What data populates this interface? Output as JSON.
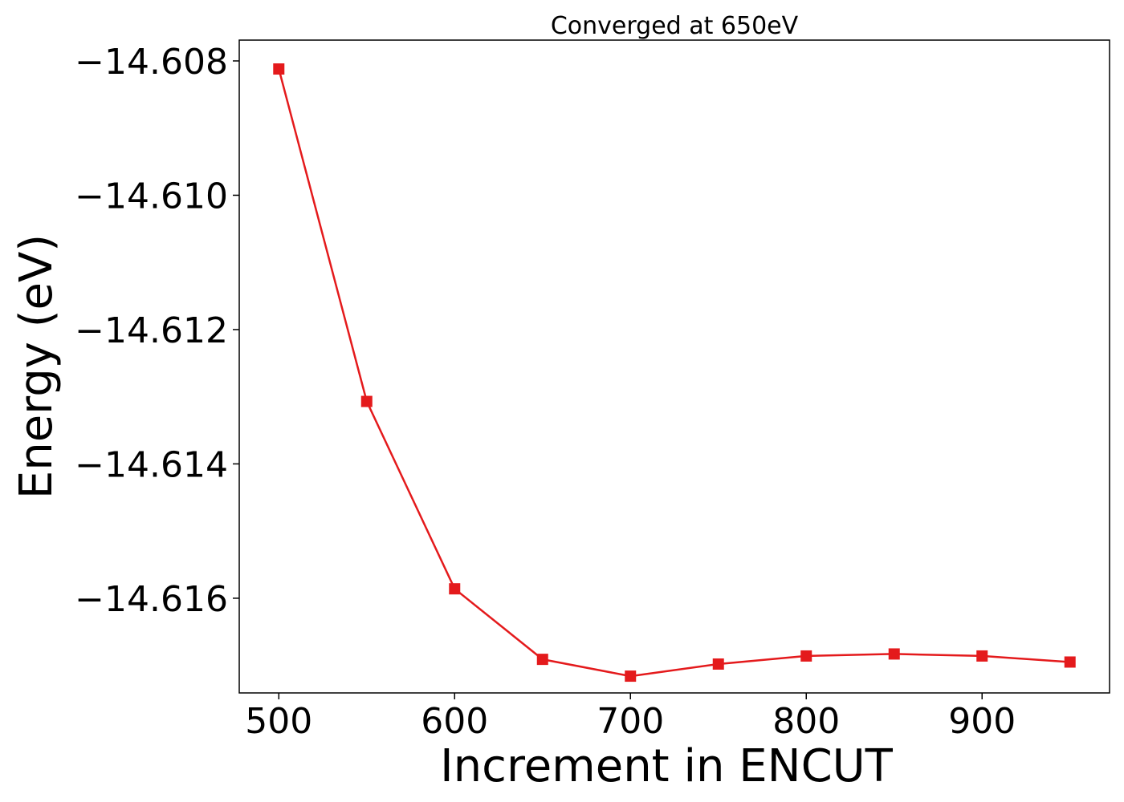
{
  "chart_data": {
    "type": "line",
    "title": "Converged at 650eV",
    "xlabel": "Increment in ENCUT",
    "ylabel": "Energy (eV)",
    "x": [
      500,
      550,
      600,
      650,
      700,
      750,
      800,
      850,
      900,
      950
    ],
    "series": [
      {
        "values": [
          -14.60812,
          -14.61307,
          -14.61586,
          -14.61691,
          -14.61716,
          -14.61698,
          -14.61686,
          -14.61683,
          -14.61686,
          -14.61695
        ],
        "color": "#e41a1c",
        "marker": "square"
      }
    ],
    "xlim": [
      477.5,
      972.5
    ],
    "ylim": [
      -14.61741,
      -14.60769
    ],
    "xticks": [
      500,
      600,
      700,
      800,
      900
    ],
    "xtick_labels": [
      "500",
      "600",
      "700",
      "800",
      "900"
    ],
    "yticks": [
      -14.608,
      -14.61,
      -14.612,
      -14.614,
      -14.616
    ],
    "ytick_labels": [
      "−14.608",
      "−14.610",
      "−14.612",
      "−14.614",
      "−14.616"
    ],
    "grid": false,
    "legend": "none"
  }
}
